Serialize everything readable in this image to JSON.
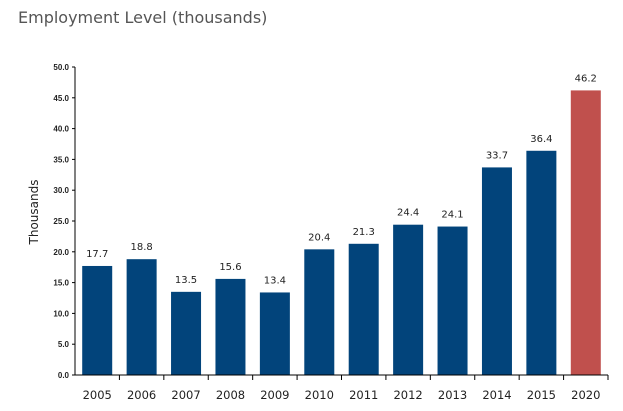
{
  "chart_data": {
    "type": "bar",
    "title": "Employment Level (thousands)",
    "xlabel": "",
    "ylabel": "Thousands",
    "categories": [
      "2005",
      "2006",
      "2007",
      "2008",
      "2009",
      "2010",
      "2011",
      "2012",
      "2013",
      "2014",
      "2015",
      "2020"
    ],
    "values": [
      17.7,
      18.8,
      13.5,
      15.6,
      13.4,
      20.4,
      21.3,
      24.4,
      24.1,
      33.7,
      36.4,
      46.2
    ],
    "data_labels": [
      "17.7",
      "18.8",
      "13.5",
      "15.6",
      "13.4",
      "20.4",
      "21.3",
      "24.4",
      "24.1",
      "33.7",
      "36.4",
      "46.2"
    ],
    "ylim": [
      0,
      50
    ],
    "yticks": [
      "0.0",
      "5.0",
      "10.0",
      "15.0",
      "20.0",
      "25.0",
      "30.0",
      "35.0",
      "40.0",
      "45.0",
      "50.0"
    ],
    "grid": false,
    "legend": "none",
    "colors": {
      "actual": "#02447b",
      "projected": "#c0504d",
      "axis": "#000000"
    },
    "highlighted_category": "2020"
  }
}
